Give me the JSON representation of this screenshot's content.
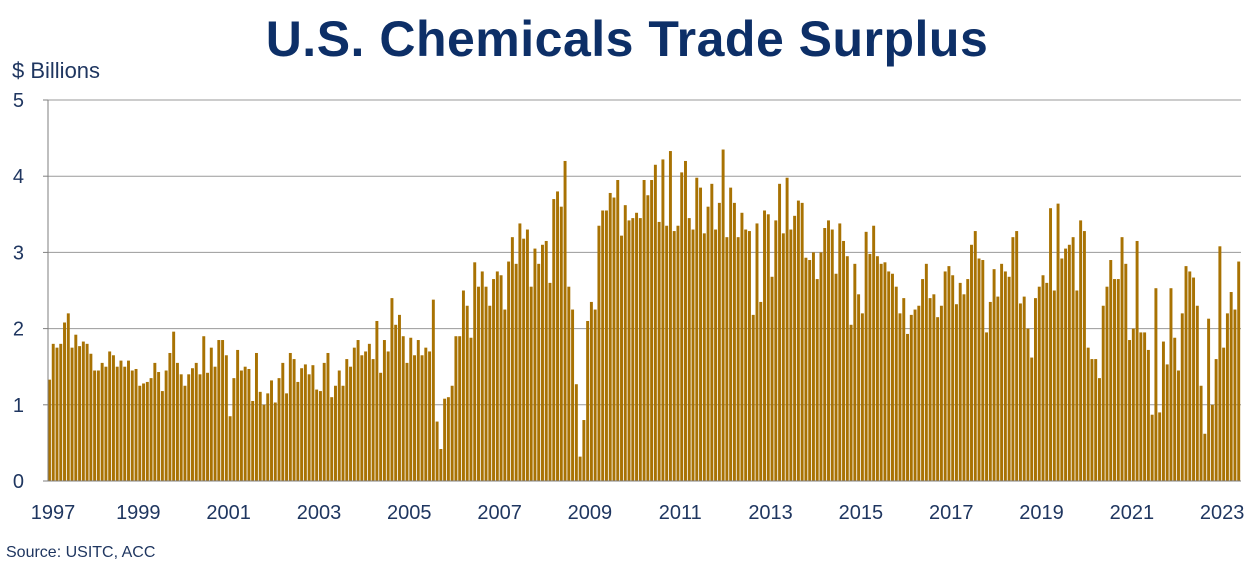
{
  "chart_data": {
    "type": "bar",
    "title": "U.S. Chemicals Trade Surplus",
    "ylabel": "$ Billions",
    "xlabel": "",
    "ylim": [
      0,
      5
    ],
    "y_ticks": [
      "0",
      "1",
      "2",
      "3",
      "4",
      "5"
    ],
    "x_ticks": [
      "1997",
      "1999",
      "2001",
      "2003",
      "2005",
      "2007",
      "2009",
      "2011",
      "2013",
      "2015",
      "2017",
      "2019",
      "2021",
      "2023"
    ],
    "x_start": "1997-01",
    "frequency": "monthly",
    "bar_color": "#a87203",
    "grid": "horizontal",
    "series": [
      {
        "values": [
          1.33,
          1.8,
          1.75,
          1.8,
          2.08,
          2.2,
          1.75,
          1.92,
          1.77,
          1.83,
          1.8,
          1.67,
          1.45,
          1.45,
          1.55,
          1.5,
          1.7,
          1.65,
          1.5,
          1.58,
          1.5,
          1.58,
          1.45,
          1.47,
          1.25,
          1.28,
          1.3,
          1.35,
          1.55,
          1.43,
          1.18,
          1.45,
          1.68,
          1.96,
          1.55,
          1.4,
          1.25,
          1.4,
          1.48,
          1.55,
          1.4,
          1.9,
          1.42,
          1.75,
          1.5,
          1.85,
          1.85,
          1.65,
          0.85,
          1.35,
          1.72,
          1.45,
          1.5,
          1.47,
          1.05,
          1.68,
          1.17,
          1.0,
          1.15,
          1.32,
          1.03,
          1.35,
          1.55,
          1.15,
          1.68,
          1.6,
          1.3,
          1.48,
          1.53,
          1.4,
          1.52,
          1.2,
          1.18,
          1.55,
          1.68,
          1.1,
          1.25,
          1.45,
          1.25,
          1.6,
          1.5,
          1.75,
          1.85,
          1.65,
          1.7,
          1.8,
          1.6,
          2.1,
          1.42,
          1.85,
          1.7,
          2.4,
          2.05,
          2.18,
          1.9,
          1.55,
          1.88,
          1.65,
          1.85,
          1.65,
          1.75,
          1.7,
          2.38,
          0.78,
          0.42,
          1.08,
          1.1,
          1.25,
          1.9,
          1.9,
          2.5,
          2.3,
          1.88,
          2.87,
          2.55,
          2.75,
          2.55,
          2.3,
          2.65,
          2.75,
          2.7,
          2.25,
          2.88,
          3.2,
          2.85,
          3.38,
          3.18,
          3.3,
          2.55,
          3.05,
          2.85,
          3.1,
          3.15,
          2.6,
          3.7,
          3.8,
          3.6,
          4.2,
          2.55,
          2.25,
          1.27,
          0.32,
          0.8,
          2.1,
          2.35,
          2.25,
          3.35,
          3.55,
          3.55,
          3.78,
          3.72,
          3.95,
          3.22,
          3.62,
          3.42,
          3.45,
          3.52,
          3.45,
          3.95,
          3.75,
          3.95,
          4.15,
          3.4,
          4.22,
          3.35,
          4.33,
          3.28,
          3.35,
          4.05,
          4.2,
          3.45,
          3.3,
          3.98,
          3.85,
          3.25,
          3.6,
          3.9,
          3.3,
          3.65,
          4.35,
          3.2,
          3.85,
          3.65,
          3.2,
          3.52,
          3.3,
          3.28,
          2.18,
          3.38,
          2.35,
          3.55,
          3.5,
          2.68,
          3.42,
          3.9,
          3.25,
          3.98,
          3.3,
          3.48,
          3.68,
          3.65,
          2.93,
          2.9,
          3.0,
          2.65,
          3.0,
          3.32,
          3.42,
          3.3,
          2.72,
          3.38,
          3.15,
          2.95,
          2.05,
          2.85,
          2.45,
          2.2,
          3.27,
          2.98,
          3.35,
          2.95,
          2.85,
          2.87,
          2.75,
          2.72,
          2.55,
          2.2,
          2.4,
          1.93,
          2.18,
          2.25,
          2.3,
          2.65,
          2.85,
          2.4,
          2.45,
          2.15,
          2.3,
          2.75,
          2.82,
          2.7,
          2.32,
          2.6,
          2.45,
          2.65,
          3.1,
          3.28,
          2.92,
          2.9,
          1.95,
          2.35,
          2.78,
          2.42,
          2.85,
          2.75,
          2.68,
          3.2,
          3.28,
          2.33,
          2.42,
          2.0,
          1.62,
          2.4,
          2.55,
          2.7,
          2.6,
          3.58,
          2.5,
          3.64,
          2.92,
          3.05,
          3.1,
          3.2,
          2.5,
          3.42,
          3.28,
          1.75,
          1.6,
          1.6,
          1.35,
          2.3,
          2.55,
          2.9,
          2.65,
          2.65,
          3.2,
          2.85,
          1.85,
          2.0,
          3.15,
          1.95,
          1.95,
          1.72,
          0.87,
          2.53,
          0.9,
          1.83,
          1.53,
          2.53,
          1.88,
          1.45,
          2.2,
          2.82,
          2.75,
          2.67,
          2.3,
          1.25,
          0.62,
          2.13,
          1.0,
          1.6,
          3.08,
          1.75,
          2.2,
          2.48,
          2.25,
          2.88
        ]
      }
    ]
  },
  "source": "Source:  USITC, ACC"
}
